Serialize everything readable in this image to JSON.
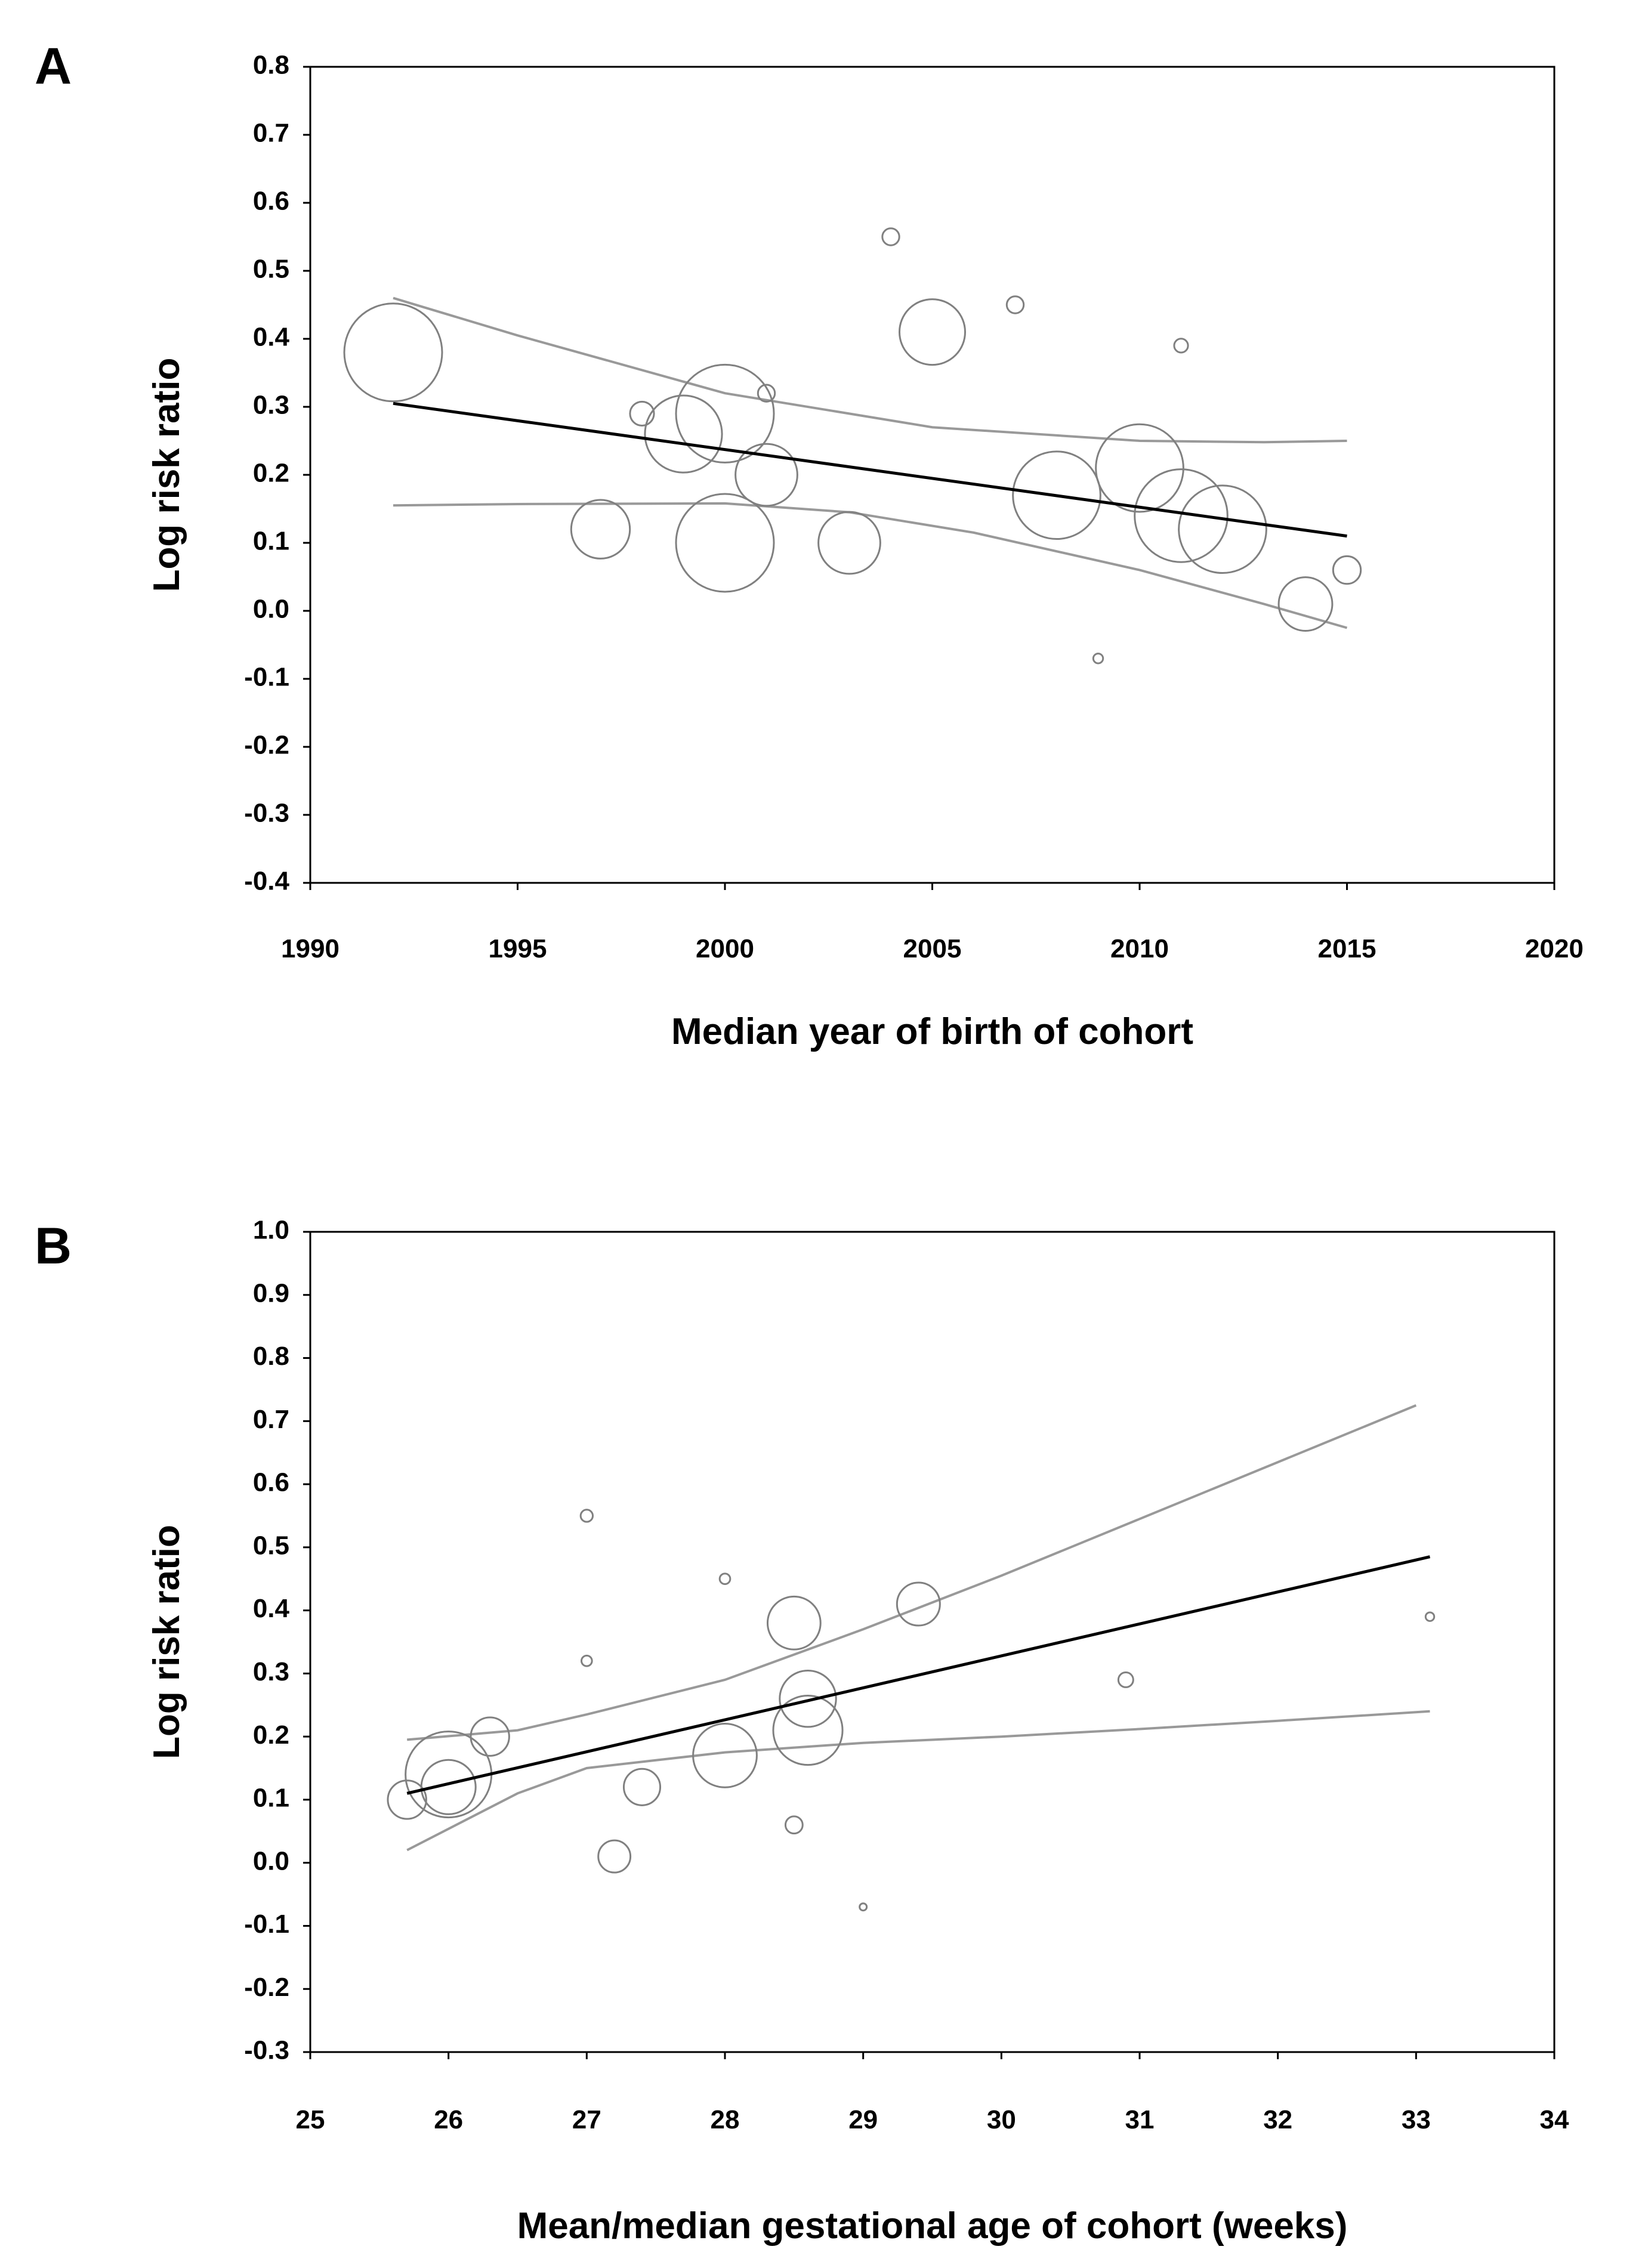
{
  "figure": {
    "panels": [
      "A",
      "B"
    ]
  },
  "colors": {
    "axis": "#000000",
    "bubble": "#808080",
    "ci_line": "#999999",
    "fit_line": "#000000"
  },
  "chart_data": [
    {
      "id": "A",
      "type": "scatter",
      "xlabel": "Median year of birth of cohort",
      "ylabel": "Log risk ratio",
      "xlim": [
        1990,
        2020
      ],
      "ylim": [
        -0.4,
        0.8
      ],
      "xticks": [
        1990,
        1995,
        2000,
        2005,
        2010,
        2015,
        2020
      ],
      "yticks": [
        -0.4,
        -0.3,
        -0.2,
        -0.1,
        0.0,
        0.1,
        0.2,
        0.3,
        0.4,
        0.5,
        0.6,
        0.7,
        0.8
      ],
      "ytick_labels": [
        "-0.4",
        "-0.3",
        "-0.2",
        "-0.1",
        "0.0",
        "0.1",
        "0.2",
        "0.3",
        "0.4",
        "0.5",
        "0.6",
        "0.7",
        "0.8"
      ],
      "points": [
        {
          "x": 1992.0,
          "y": 0.38,
          "w": 1.0
        },
        {
          "x": 1997.0,
          "y": 0.12,
          "w": 0.36
        },
        {
          "x": 1998.0,
          "y": 0.29,
          "w": 0.06
        },
        {
          "x": 1999.0,
          "y": 0.26,
          "w": 0.62
        },
        {
          "x": 2000.0,
          "y": 0.29,
          "w": 1.0
        },
        {
          "x": 2000.0,
          "y": 0.1,
          "w": 1.0
        },
        {
          "x": 2001.0,
          "y": 0.32,
          "w": 0.03
        },
        {
          "x": 2001.0,
          "y": 0.2,
          "w": 0.4
        },
        {
          "x": 2003.0,
          "y": 0.1,
          "w": 0.4
        },
        {
          "x": 2004.0,
          "y": 0.55,
          "w": 0.03
        },
        {
          "x": 2005.0,
          "y": 0.41,
          "w": 0.45
        },
        {
          "x": 2007.0,
          "y": 0.45,
          "w": 0.03
        },
        {
          "x": 2008.0,
          "y": 0.17,
          "w": 0.8
        },
        {
          "x": 2009.0,
          "y": -0.07,
          "w": 0.01
        },
        {
          "x": 2010.0,
          "y": 0.21,
          "w": 0.8
        },
        {
          "x": 2011.0,
          "y": 0.39,
          "w": 0.02
        },
        {
          "x": 2011.0,
          "y": 0.14,
          "w": 0.9
        },
        {
          "x": 2012.0,
          "y": 0.12,
          "w": 0.8
        },
        {
          "x": 2014.0,
          "y": 0.01,
          "w": 0.3
        },
        {
          "x": 2015.0,
          "y": 0.06,
          "w": 0.08
        }
      ],
      "fit": {
        "x": [
          1992,
          2015
        ],
        "y": [
          0.305,
          0.11
        ]
      },
      "ci_upper": {
        "x": [
          1992,
          1995,
          2000,
          2005,
          2010,
          2013,
          2015
        ],
        "y": [
          0.46,
          0.405,
          0.32,
          0.27,
          0.25,
          0.248,
          0.25
        ]
      },
      "ci_lower": {
        "x": [
          1992,
          1995,
          2000,
          2003,
          2006,
          2010,
          2013,
          2015
        ],
        "y": [
          0.155,
          0.157,
          0.158,
          0.145,
          0.115,
          0.06,
          0.01,
          -0.025
        ]
      }
    },
    {
      "id": "B",
      "type": "scatter",
      "xlabel": "Mean/median gestational age of cohort (weeks)",
      "ylabel": "Log risk ratio",
      "xlim": [
        25,
        34
      ],
      "ylim": [
        -0.3,
        1.0
      ],
      "xticks": [
        25,
        26,
        27,
        28,
        29,
        30,
        31,
        32,
        33,
        34
      ],
      "yticks": [
        -0.3,
        -0.2,
        -0.1,
        0.0,
        0.1,
        0.2,
        0.3,
        0.4,
        0.5,
        0.6,
        0.7,
        0.8,
        0.9,
        1.0
      ],
      "ytick_labels": [
        "-0.3",
        "-0.2",
        "-0.1",
        "0.0",
        "0.1",
        "0.2",
        "0.3",
        "0.4",
        "0.5",
        "0.6",
        "0.7",
        "0.8",
        "0.9",
        "1.0"
      ],
      "points": [
        {
          "x": 25.7,
          "y": 0.1,
          "w": 0.2
        },
        {
          "x": 26.0,
          "y": 0.14,
          "w": 1.0
        },
        {
          "x": 26.0,
          "y": 0.12,
          "w": 0.4
        },
        {
          "x": 26.3,
          "y": 0.2,
          "w": 0.2
        },
        {
          "x": 27.0,
          "y": 0.55,
          "w": 0.02
        },
        {
          "x": 27.0,
          "y": 0.32,
          "w": 0.015
        },
        {
          "x": 27.2,
          "y": 0.01,
          "w": 0.14
        },
        {
          "x": 27.4,
          "y": 0.12,
          "w": 0.18
        },
        {
          "x": 28.0,
          "y": 0.45,
          "w": 0.015
        },
        {
          "x": 28.0,
          "y": 0.17,
          "w": 0.55
        },
        {
          "x": 28.5,
          "y": 0.38,
          "w": 0.38
        },
        {
          "x": 28.5,
          "y": 0.06,
          "w": 0.04
        },
        {
          "x": 28.6,
          "y": 0.26,
          "w": 0.43
        },
        {
          "x": 28.6,
          "y": 0.21,
          "w": 0.65
        },
        {
          "x": 29.0,
          "y": -0.07,
          "w": 0.002
        },
        {
          "x": 29.4,
          "y": 0.41,
          "w": 0.25
        },
        {
          "x": 30.9,
          "y": 0.29,
          "w": 0.03
        },
        {
          "x": 33.1,
          "y": 0.39,
          "w": 0.01
        }
      ],
      "fit": {
        "x": [
          25.7,
          33.1
        ],
        "y": [
          0.11,
          0.485
        ]
      },
      "ci_upper": {
        "x": [
          25.7,
          26.5,
          27.0,
          28.0,
          29.0,
          30.0,
          31.0,
          32.0,
          33.0
        ],
        "y": [
          0.195,
          0.21,
          0.235,
          0.29,
          0.37,
          0.455,
          0.545,
          0.635,
          0.725
        ]
      },
      "ci_lower": {
        "x": [
          25.7,
          26.5,
          27.0,
          28.0,
          29.0,
          30.0,
          31.0,
          32.0,
          33.1
        ],
        "y": [
          0.02,
          0.11,
          0.15,
          0.175,
          0.19,
          0.2,
          0.212,
          0.225,
          0.24
        ]
      }
    }
  ]
}
